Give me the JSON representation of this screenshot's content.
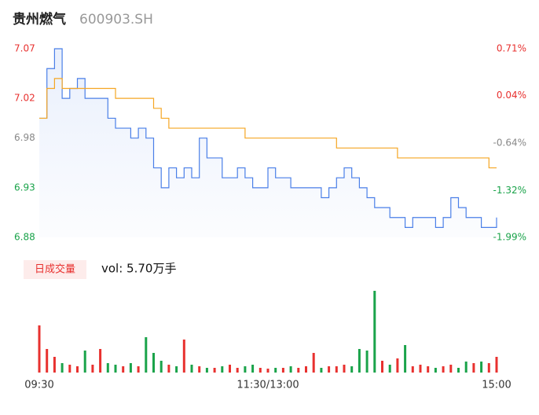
{
  "header": {
    "title": "贵州燃气",
    "code": "600903.SH"
  },
  "chart_data": [
    {
      "type": "line",
      "x": [
        0,
        4,
        8,
        12,
        16,
        20,
        24,
        28,
        32,
        36,
        40,
        44,
        48,
        52,
        56,
        60,
        64,
        68,
        72,
        76,
        80,
        84,
        88,
        92,
        96,
        100,
        104,
        108,
        112,
        116,
        120,
        124,
        128,
        132,
        136,
        140,
        144,
        148,
        152,
        156,
        160,
        164,
        168,
        172,
        176,
        180,
        184,
        188,
        192,
        196,
        200,
        204,
        208,
        212,
        216,
        220,
        224,
        228,
        232,
        236,
        240
      ],
      "xlim": [
        0,
        240
      ],
      "xticks": [
        {
          "value": 0,
          "label": "09:30"
        },
        {
          "value": 120,
          "label": "11:30/13:00"
        },
        {
          "value": 240,
          "label": "15:00"
        }
      ],
      "ylim": [
        6.88,
        7.07
      ],
      "yticks": [
        6.88,
        6.93,
        6.98,
        7.02,
        7.07
      ],
      "ytick_colors": [
        "#1aa34a",
        "#1aa34a",
        "#888888",
        "#e8312f",
        "#e8312f"
      ],
      "y2lim": [
        -1.99,
        0.71
      ],
      "y2ticks": [
        {
          "value": -1.99,
          "label": "-1.99%"
        },
        {
          "value": -1.32,
          "label": "-1.32%"
        },
        {
          "value": -0.64,
          "label": "-0.64%"
        },
        {
          "value": 0.04,
          "label": "0.04%"
        },
        {
          "value": 0.71,
          "label": "0.71%"
        }
      ],
      "series": [
        {
          "color": "#4a7fe8",
          "values": [
            7.0,
            7.05,
            7.07,
            7.02,
            7.03,
            7.04,
            7.02,
            7.02,
            7.02,
            7.0,
            6.99,
            6.99,
            6.98,
            6.99,
            6.98,
            6.95,
            6.93,
            6.95,
            6.94,
            6.95,
            6.94,
            6.98,
            6.96,
            6.96,
            6.94,
            6.94,
            6.95,
            6.94,
            6.93,
            6.93,
            6.95,
            6.94,
            6.94,
            6.93,
            6.93,
            6.93,
            6.93,
            6.92,
            6.93,
            6.94,
            6.95,
            6.94,
            6.93,
            6.92,
            6.91,
            6.91,
            6.9,
            6.9,
            6.89,
            6.9,
            6.9,
            6.9,
            6.89,
            6.9,
            6.92,
            6.91,
            6.9,
            6.9,
            6.89,
            6.89,
            6.9
          ]
        },
        {
          "color": "#f5a623",
          "values": [
            7.0,
            7.03,
            7.04,
            7.03,
            7.03,
            7.03,
            7.03,
            7.03,
            7.03,
            7.03,
            7.02,
            7.02,
            7.02,
            7.02,
            7.02,
            7.01,
            7.0,
            6.99,
            6.99,
            6.99,
            6.99,
            6.99,
            6.99,
            6.99,
            6.99,
            6.99,
            6.99,
            6.98,
            6.98,
            6.98,
            6.98,
            6.98,
            6.98,
            6.98,
            6.98,
            6.98,
            6.98,
            6.98,
            6.98,
            6.97,
            6.97,
            6.97,
            6.97,
            6.97,
            6.97,
            6.97,
            6.97,
            6.96,
            6.96,
            6.96,
            6.96,
            6.96,
            6.96,
            6.96,
            6.96,
            6.96,
            6.96,
            6.96,
            6.96,
            6.95,
            6.95
          ]
        }
      ]
    },
    {
      "type": "volume",
      "label": "日成交量",
      "summary": "vol: 5.70万手",
      "up_color": "#e8312f",
      "down_color": "#1aa34a",
      "ylim": [
        0,
        105
      ],
      "values": [
        60,
        30,
        20,
        12,
        10,
        8,
        28,
        10,
        30,
        12,
        10,
        8,
        12,
        8,
        45,
        25,
        15,
        10,
        8,
        42,
        10,
        8,
        6,
        6,
        8,
        10,
        6,
        8,
        10,
        6,
        5,
        6,
        6,
        8,
        6,
        8,
        25,
        6,
        8,
        8,
        10,
        8,
        30,
        28,
        104,
        15,
        10,
        18,
        35,
        8,
        10,
        8,
        6,
        8,
        10,
        6,
        14,
        12,
        14,
        12,
        20
      ]
    }
  ]
}
